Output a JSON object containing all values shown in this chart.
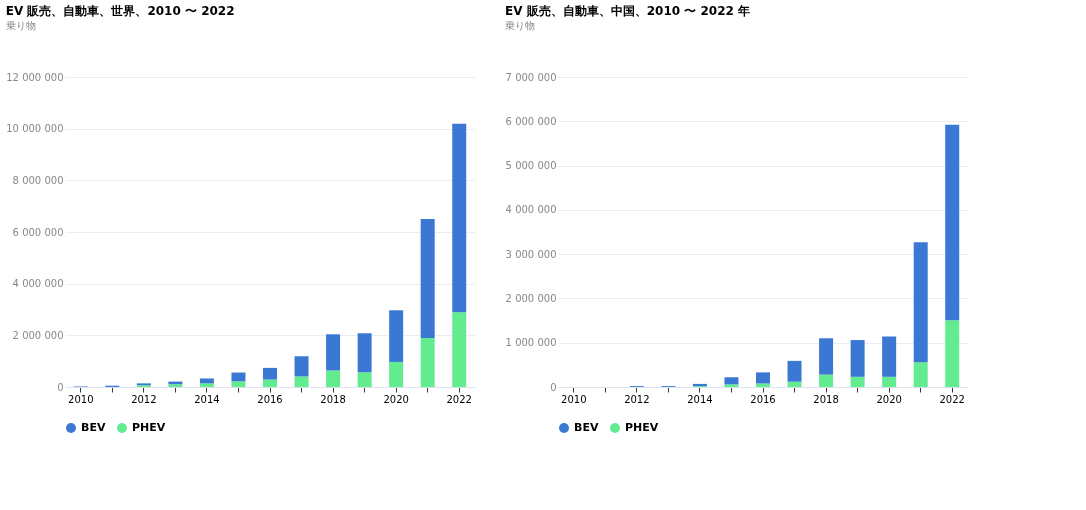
{
  "chart_data": [
    {
      "type": "bar",
      "stacked": true,
      "title": "EV 販売、自動車、世界、2010 〜 2022",
      "subtitle": "乗り物",
      "categories": [
        "2010",
        null,
        "2012",
        null,
        "2014",
        null,
        "2016",
        null,
        "2018",
        null,
        "2020",
        null,
        "2022"
      ],
      "series": [
        {
          "name": "PHEV",
          "color": "#63ec8f",
          "values": [
            0,
            null,
            70000,
            110000,
            140000,
            220000,
            290000,
            410000,
            640000,
            570000,
            970000,
            1900000,
            2890000
          ]
        },
        {
          "name": "BEV",
          "color": "#3a78d4",
          "values": [
            20000,
            50000,
            70000,
            100000,
            190000,
            340000,
            450000,
            780000,
            1400000,
            1510000,
            2000000,
            4600000,
            7300000
          ]
        }
      ],
      "ylim": [
        0,
        12000000
      ],
      "yticks": [
        0,
        {
          "value": 2000000,
          "label": "2 000 000"
        },
        {
          "value": 4000000,
          "label": "4 000 000"
        },
        {
          "value": 6000000,
          "label": "6 000 000"
        },
        {
          "value": 8000000,
          "label": "8 000 000"
        },
        {
          "value": 10000000,
          "label": "10 000 000"
        },
        {
          "value": 12000000,
          "label": "12 000 000"
        }
      ],
      "grid": "y",
      "legend": "bottom"
    },
    {
      "type": "bar",
      "stacked": true,
      "title": "EV 販売、自動車、中国、2010 〜 2022 年",
      "subtitle": "乗り物",
      "categories": [
        "2010",
        null,
        "2012",
        null,
        "2014",
        null,
        "2016",
        null,
        "2018",
        null,
        "2020",
        null,
        "2022"
      ],
      "series": [
        {
          "name": "PHEV",
          "color": "#63ec8f",
          "values": [
            0,
            0,
            0,
            0,
            20000,
            60000,
            80000,
            120000,
            280000,
            230000,
            230000,
            560000,
            1510000
          ]
        },
        {
          "name": "BEV",
          "color": "#3a78d4",
          "values": [
            0,
            null,
            20000,
            20000,
            50000,
            160000,
            250000,
            470000,
            820000,
            830000,
            910000,
            2710000,
            4410000
          ]
        }
      ],
      "ylim": [
        0,
        7000000
      ],
      "yticks": [
        0,
        {
          "value": 1000000,
          "label": "1 000 000"
        },
        {
          "value": 2000000,
          "label": "2 000 000"
        },
        {
          "value": 3000000,
          "label": "3 000 000"
        },
        {
          "value": 4000000,
          "label": "4 000 000"
        },
        {
          "value": 5000000,
          "label": "5 000 000"
        },
        {
          "value": 6000000,
          "label": "6 000 000"
        },
        {
          "value": 7000000,
          "label": "7 000 000"
        }
      ],
      "grid": "y",
      "legend": "bottom"
    }
  ]
}
